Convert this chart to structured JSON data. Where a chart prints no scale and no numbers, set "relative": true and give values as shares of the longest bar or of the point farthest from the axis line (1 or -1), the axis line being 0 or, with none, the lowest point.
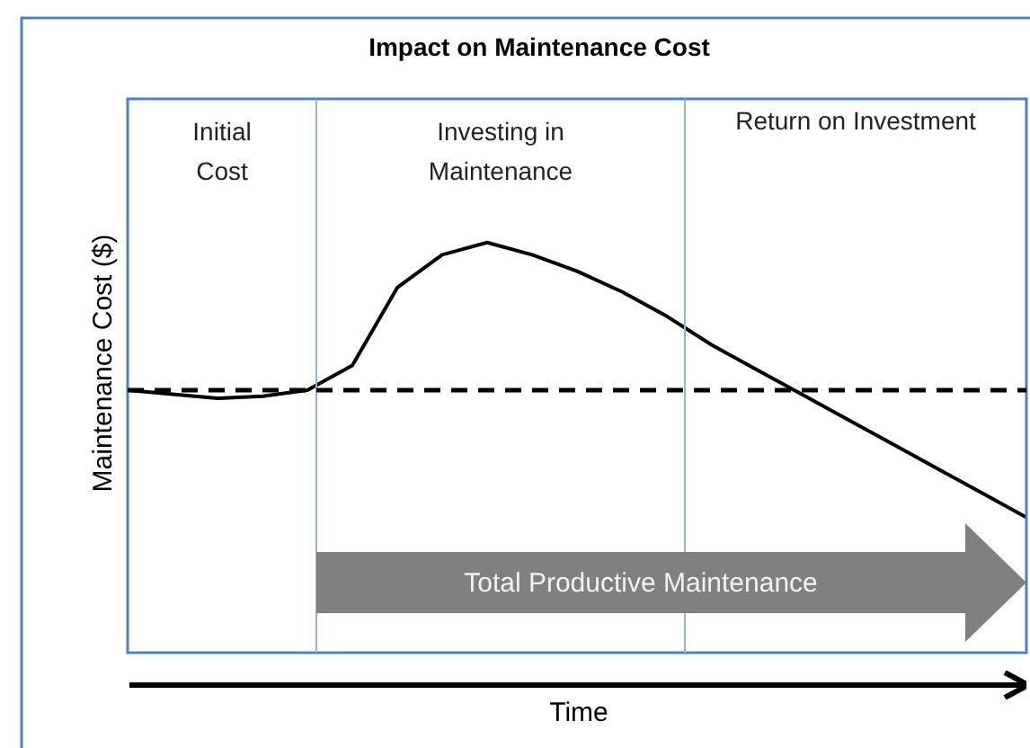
{
  "chart_data": {
    "type": "line",
    "title": "Impact on Maintenance Cost",
    "xlabel": "Time",
    "ylabel": "Maintenance Cost ($)",
    "relative": true,
    "categories": [
      null,
      null,
      null,
      null,
      null,
      null,
      null,
      null,
      null,
      null,
      null,
      null,
      null,
      null,
      null,
      null,
      null,
      null,
      null,
      null,
      null
    ],
    "series": [
      {
        "color": "#000000",
        "values": [
          0.64,
          0.63,
          0.62,
          0.625,
          0.64,
          0.7,
          0.89,
          0.97,
          1,
          0.97,
          0.93,
          0.88,
          0.82,
          0.75,
          0.69,
          0.63,
          0.57,
          0.51,
          0.45,
          0.39,
          0.33
        ]
      }
    ],
    "tick_labels": false,
    "legend": false,
    "ref_lines": [
      {
        "axis": "y",
        "value": 0.64,
        "color": "#000000",
        "line_style": "dashed"
      }
    ],
    "annotations": [
      "Initial Cost",
      "Investing in Maintenance",
      "Return on Investment",
      "Total Productive Maintenance"
    ]
  }
}
